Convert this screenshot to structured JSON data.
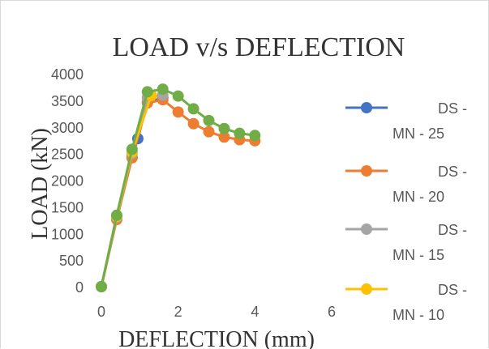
{
  "chart_data": {
    "type": "line",
    "title": "LOAD v/s DEFLECTION",
    "xlabel": "DEFLECTION (mm)",
    "ylabel": "LOAD (kN)",
    "xlim": [
      0,
      6
    ],
    "ylim": [
      0,
      4000
    ],
    "x_ticks": [
      "0",
      "2",
      "4",
      "6"
    ],
    "y_ticks": [
      "0",
      "500",
      "1000",
      "1500",
      "2000",
      "2500",
      "3000",
      "3500",
      "4000"
    ],
    "grid": false,
    "legend_position": "right",
    "markers": true,
    "series": [
      {
        "name": "DS - MN - 25",
        "color": "#4472C4",
        "points": [
          [
            0,
            0
          ],
          [
            0.4,
            1280
          ],
          [
            0.8,
            2430
          ],
          [
            0.95,
            2780
          ],
          [
            1.2,
            3460
          ],
          [
            1.6,
            3550
          ]
        ]
      },
      {
        "name": "DS - MN - 20",
        "color": "#ED7D31",
        "points": [
          [
            0,
            0
          ],
          [
            0.4,
            1260
          ],
          [
            0.8,
            2420
          ],
          [
            1.2,
            3450
          ],
          [
            1.6,
            3510
          ],
          [
            2.0,
            3280
          ],
          [
            2.4,
            3060
          ],
          [
            2.8,
            2910
          ],
          [
            3.2,
            2810
          ],
          [
            3.6,
            2760
          ],
          [
            4.0,
            2740
          ]
        ]
      },
      {
        "name": "DS - MN - 15",
        "color": "#A5A5A5",
        "points": [
          [
            0,
            0
          ],
          [
            0.4,
            1300
          ],
          [
            0.8,
            2500
          ],
          [
            1.2,
            3550
          ],
          [
            1.6,
            3600
          ]
        ]
      },
      {
        "name": "DS - MN - 10",
        "color": "#FFC000",
        "points": [
          [
            0,
            0
          ],
          [
            0.4,
            1320
          ],
          [
            0.8,
            2530
          ],
          [
            1.3,
            3590
          ]
        ]
      },
      {
        "name": "",
        "color": "#70AD47",
        "points": [
          [
            0,
            0
          ],
          [
            0.4,
            1340
          ],
          [
            0.8,
            2580
          ],
          [
            1.2,
            3660
          ],
          [
            1.6,
            3710
          ],
          [
            2.0,
            3580
          ],
          [
            2.4,
            3340
          ],
          [
            2.8,
            3120
          ],
          [
            3.2,
            2970
          ],
          [
            3.6,
            2880
          ],
          [
            4.0,
            2840
          ]
        ]
      }
    ],
    "legend": [
      {
        "line1": "DS -",
        "line2": "MN - 25",
        "color": "#4472C4"
      },
      {
        "line1": "DS -",
        "line2": "MN - 20",
        "color": "#ED7D31"
      },
      {
        "line1": "DS -",
        "line2": "MN - 15",
        "color": "#A5A5A5"
      },
      {
        "line1": "DS -",
        "line2": "MN - 10",
        "color": "#FFC000"
      }
    ]
  }
}
